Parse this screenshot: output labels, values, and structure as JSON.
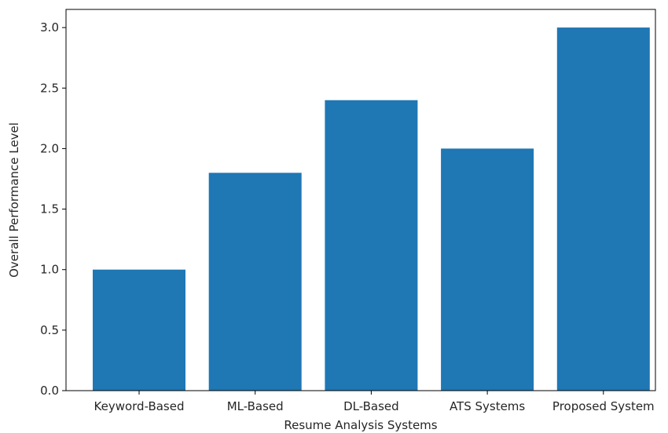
{
  "chart_data": {
    "type": "bar",
    "categories": [
      "Keyword-Based",
      "ML-Based",
      "DL-Based",
      "ATS Systems",
      "Proposed System"
    ],
    "values": [
      1.0,
      1.8,
      2.4,
      2.0,
      3.0
    ],
    "title": "",
    "xlabel": "Resume Analysis Systems",
    "ylabel": "Overall Performance Level",
    "ylim": [
      0,
      3.15
    ],
    "yticks": [
      "0.0",
      "0.5",
      "1.0",
      "1.5",
      "2.0",
      "2.5",
      "3.0"
    ],
    "grid": false,
    "bar_color": "#1f77b4"
  }
}
